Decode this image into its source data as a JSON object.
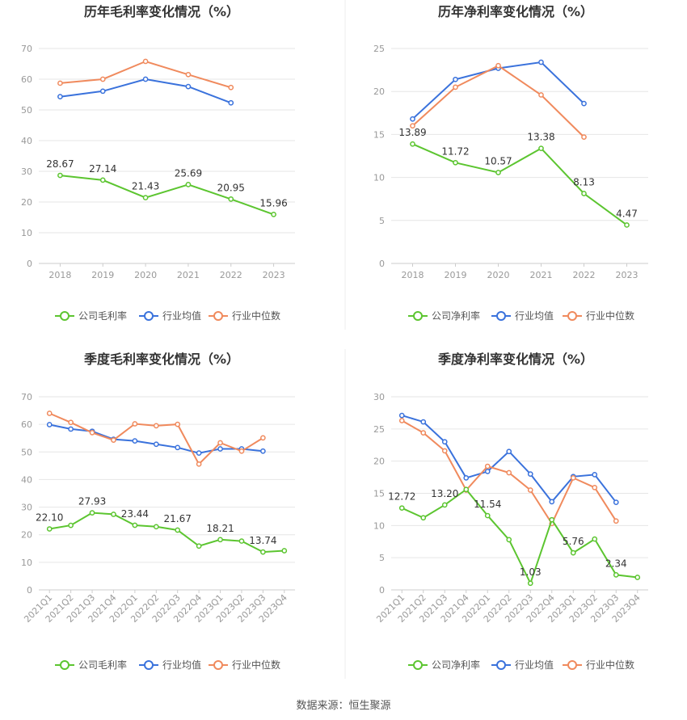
{
  "source_label": "数据来源：恒生聚源",
  "colors": {
    "company": "#5cc530",
    "industry_avg": "#3a72dc",
    "industry_median": "#f08a5d"
  },
  "chart_data": [
    {
      "type": "line",
      "title": "历年毛利率变化情况（%）",
      "categories": [
        "2018",
        "2019",
        "2020",
        "2021",
        "2022",
        "2023"
      ],
      "ylim": [
        0,
        70
      ],
      "yticks": [
        0,
        10,
        20,
        30,
        40,
        50,
        60,
        70
      ],
      "grid": true,
      "legend_position": "bottom",
      "series": [
        {
          "name": "公司毛利率",
          "key": "company",
          "values": [
            28.67,
            27.14,
            21.43,
            25.69,
            20.95,
            15.96
          ],
          "labels": [
            "28.67",
            "27.14",
            "21.43",
            "25.69",
            "20.95",
            "15.96"
          ]
        },
        {
          "name": "行业均值",
          "key": "industry_avg",
          "values": [
            54.3,
            56.1,
            60.0,
            57.6,
            52.3,
            null
          ]
        },
        {
          "name": "行业中位数",
          "key": "industry_median",
          "values": [
            58.7,
            60.0,
            65.8,
            61.5,
            57.3,
            null
          ]
        }
      ]
    },
    {
      "type": "line",
      "title": "历年净利率变化情况（%）",
      "categories": [
        "2018",
        "2019",
        "2020",
        "2021",
        "2022",
        "2023"
      ],
      "ylim": [
        0,
        25
      ],
      "yticks": [
        0,
        5,
        10,
        15,
        20,
        25
      ],
      "grid": true,
      "legend_position": "bottom",
      "series": [
        {
          "name": "公司净利率",
          "key": "company",
          "values": [
            13.89,
            11.72,
            10.57,
            13.38,
            8.13,
            4.47
          ],
          "labels": [
            "13.89",
            "11.72",
            "10.57",
            "13.38",
            "8.13",
            "4.47"
          ]
        },
        {
          "name": "行业均值",
          "key": "industry_avg",
          "values": [
            16.8,
            21.4,
            22.7,
            23.4,
            18.6,
            null
          ]
        },
        {
          "name": "行业中位数",
          "key": "industry_median",
          "values": [
            16.0,
            20.5,
            23.0,
            19.6,
            14.7,
            null
          ]
        }
      ]
    },
    {
      "type": "line",
      "title": "季度毛利率变化情况（%）",
      "categories": [
        "2021Q1",
        "2021Q2",
        "2021Q3",
        "2021Q4",
        "2022Q1",
        "2022Q2",
        "2022Q3",
        "2022Q4",
        "2023Q1",
        "2023Q2",
        "2023Q3",
        "2023Q4"
      ],
      "ylim": [
        0,
        70
      ],
      "yticks": [
        0,
        10,
        20,
        30,
        40,
        50,
        60,
        70
      ],
      "grid": true,
      "legend_position": "bottom",
      "series": [
        {
          "name": "公司毛利率",
          "key": "company",
          "values": [
            22.1,
            23.4,
            27.93,
            27.4,
            23.44,
            22.9,
            21.67,
            15.9,
            18.21,
            17.7,
            13.74,
            14.2
          ],
          "labels": [
            "22.10",
            "",
            "27.93",
            "",
            "23.44",
            "",
            "21.67",
            "",
            "18.21",
            "",
            "13.74",
            ""
          ]
        },
        {
          "name": "行业均值",
          "key": "industry_avg",
          "values": [
            59.9,
            58.3,
            57.5,
            54.6,
            54.0,
            52.8,
            51.6,
            49.6,
            51.1,
            51.1,
            50.3,
            null
          ]
        },
        {
          "name": "行业中位数",
          "key": "industry_median",
          "values": [
            64.0,
            60.7,
            57.0,
            54.3,
            60.2,
            59.5,
            60.0,
            45.6,
            53.3,
            50.3,
            55.1,
            null
          ]
        }
      ]
    },
    {
      "type": "line",
      "title": "季度净利率变化情况（%）",
      "categories": [
        "2021Q1",
        "2021Q2",
        "2021Q3",
        "2021Q4",
        "2022Q1",
        "2022Q2",
        "2022Q3",
        "2022Q4",
        "2023Q1",
        "2023Q2",
        "2023Q3",
        "2023Q4"
      ],
      "ylim": [
        0,
        30
      ],
      "yticks": [
        0,
        5,
        10,
        15,
        20,
        25,
        30
      ],
      "grid": true,
      "legend_position": "bottom",
      "series": [
        {
          "name": "公司净利率",
          "key": "company",
          "values": [
            12.72,
            11.2,
            13.2,
            15.6,
            11.54,
            7.8,
            1.03,
            10.9,
            5.76,
            7.9,
            2.34,
            1.95
          ],
          "labels": [
            "12.72",
            "",
            "13.20",
            "",
            "11.54",
            "",
            "1.03",
            "",
            "5.76",
            "",
            "2.34",
            ""
          ]
        },
        {
          "name": "行业均值",
          "key": "industry_avg",
          "values": [
            27.1,
            26.1,
            23.0,
            17.4,
            18.4,
            21.5,
            18.0,
            13.7,
            17.6,
            17.9,
            13.6,
            null
          ]
        },
        {
          "name": "行业中位数",
          "key": "industry_median",
          "values": [
            26.3,
            24.4,
            21.6,
            15.5,
            19.2,
            18.2,
            15.5,
            10.3,
            17.4,
            15.9,
            10.7,
            null
          ]
        }
      ]
    }
  ]
}
